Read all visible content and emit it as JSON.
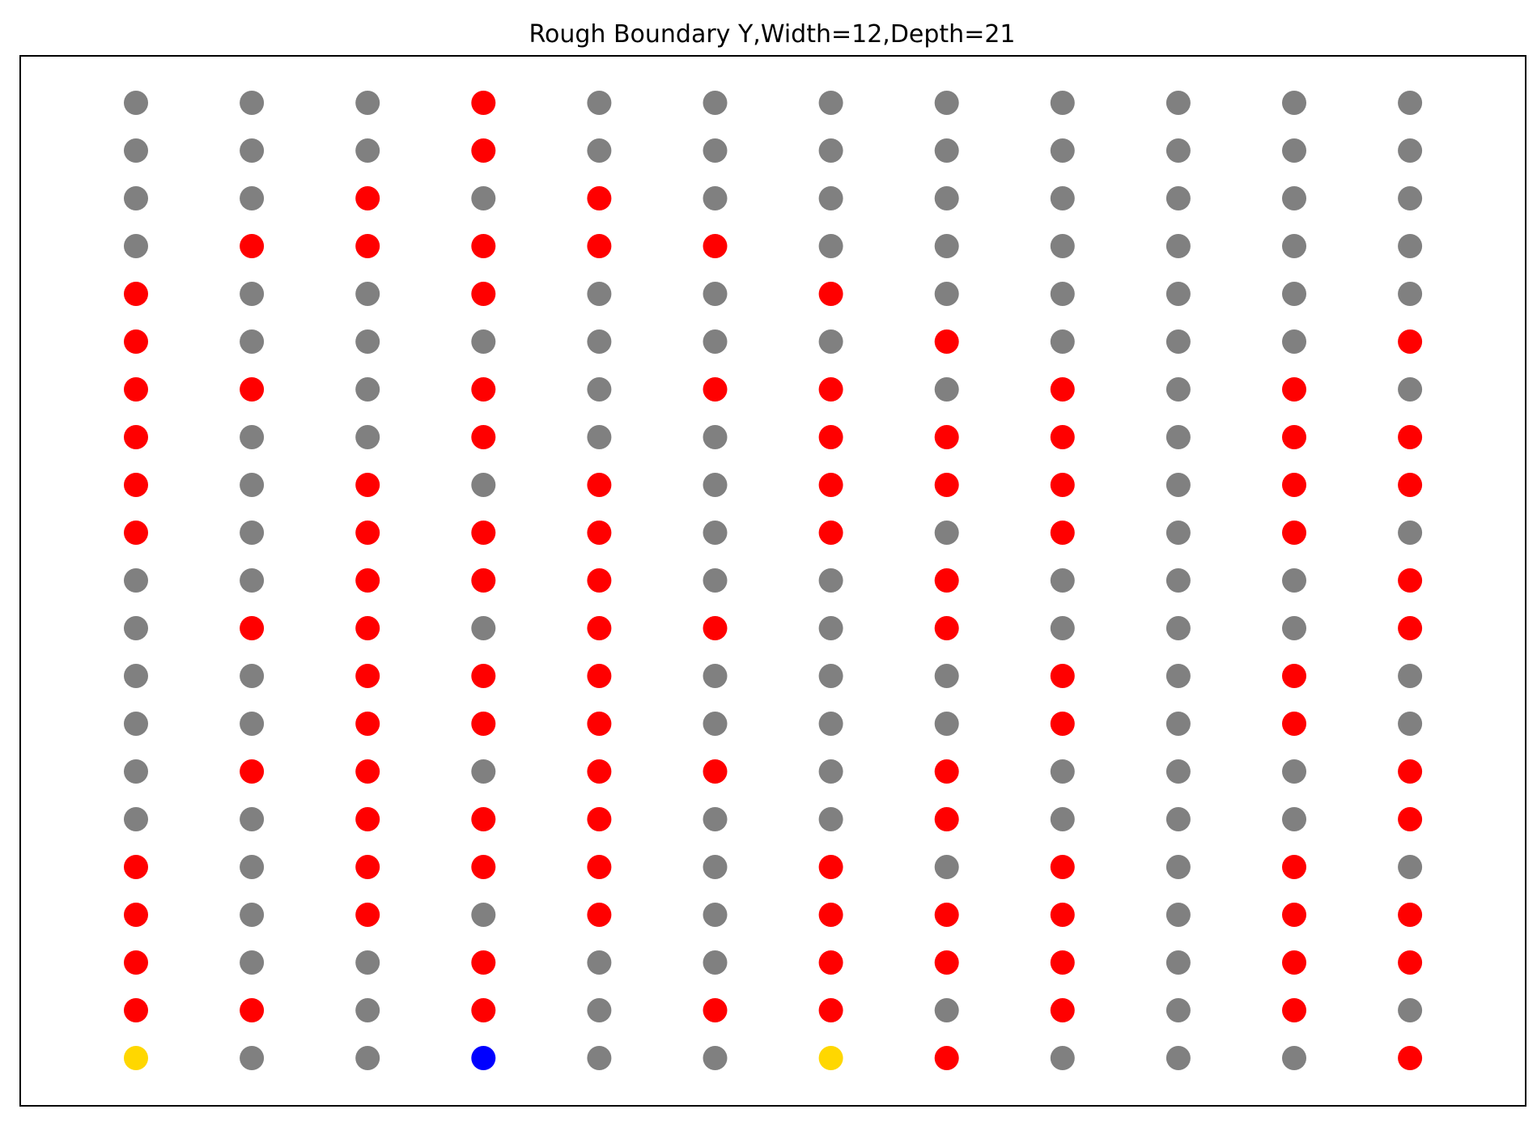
{
  "chart_data": {
    "type": "scatter",
    "title": "Rough Boundary Y,Width=12,Depth=21",
    "xlabel": "",
    "ylabel": "",
    "axes_visible": false,
    "grid": false,
    "legend": "none",
    "width": 12,
    "depth": 21,
    "colors": {
      "g": "#808080",
      "r": "#ff0000",
      "y": "#ffd700",
      "b": "#0000ff"
    },
    "color_legend": {
      "g": "gray",
      "r": "red",
      "y": "gold",
      "b": "blue"
    },
    "rows_top_to_bottom": [
      "gggrgggggggg",
      "gggrgggggggg",
      "ggrgrggggggg",
      "grrrrrgggggg",
      "rggrggrggggg",
      "rggggggrgggr",
      "rrgrgrrgrgrg",
      "rggrggrrrgrr",
      "rgrgrgrrrgrr",
      "rgrrrgrgrgrg",
      "ggrrrggrgggr",
      "grrgrrgrgggr",
      "ggrrrgggrgrg",
      "ggrrrgggrgrg",
      "grrgrrgrgggr",
      "ggrrrggrgggr",
      "rgrrrgrgrgrg",
      "rgrgrgrrrgrr",
      "rggrggrrrgrr",
      "rrgrgrrgrgrg",
      "yggbggyrgggr"
    ]
  }
}
